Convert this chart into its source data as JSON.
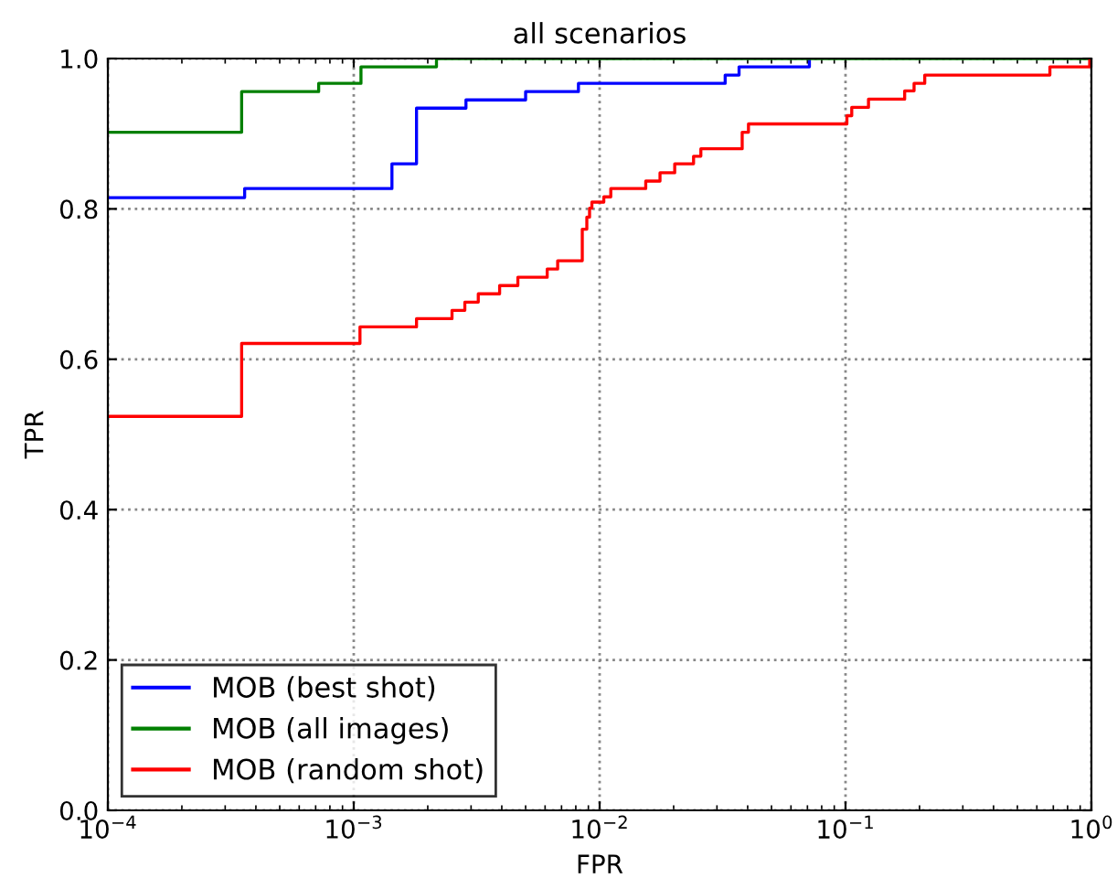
{
  "chart_data": {
    "type": "step",
    "title": "all scenarios",
    "xlabel": "FPR",
    "ylabel": "TPR",
    "log": "x",
    "grid": true,
    "legend": "bottom left",
    "line_style": "solid",
    "marker": "none",
    "xlim": [
      0.0001,
      1
    ],
    "xticks": [
      {
        "value": 0.0001,
        "label": "10$^{−4}$"
      },
      {
        "value": 0.001,
        "label": "10$^{−3}$"
      },
      {
        "value": 0.01,
        "label": "10$^{−2}$"
      },
      {
        "value": 0.1,
        "label": "10$^{−1}$"
      },
      {
        "value": 1,
        "label": "10$^{0}$"
      }
    ],
    "ylim": [
      0,
      1
    ],
    "yticks": [
      {
        "value": 0,
        "label": "0.0"
      },
      {
        "value": 0.2,
        "label": "0.2"
      },
      {
        "value": 0.4,
        "label": "0.4"
      },
      {
        "value": 0.6,
        "label": "0.6"
      },
      {
        "value": 0.8,
        "label": "0.8"
      },
      {
        "value": 1,
        "label": "1.0"
      }
    ],
    "series": [
      {
        "name": "MOB (best shot)",
        "color": "#0000ff",
        "x": [
          0.0001,
          0.00036,
          0.00143,
          0.0018,
          0.00286,
          0.005,
          0.0082,
          0.0324,
          0.0369,
          0.0713
        ],
        "values": [
          0.815,
          0.827,
          0.86,
          0.934,
          0.945,
          0.956,
          0.967,
          0.978,
          0.989,
          1.0
        ]
      },
      {
        "name": "MOB (all images)",
        "color": "#008000",
        "x": [
          0.0001,
          0.00035,
          0.00072,
          0.00107,
          0.00217,
          1
        ],
        "values": [
          0.902,
          0.956,
          0.967,
          0.989,
          1.0,
          1.0
        ]
      },
      {
        "name": "MOB (random shot)",
        "color": "#ff0000",
        "x": [
          0.0001,
          0.00035,
          0.00106,
          0.0018,
          0.00251,
          0.00283,
          0.00321,
          0.00392,
          0.00465,
          0.00612,
          0.00675,
          0.0085,
          0.00887,
          0.0091,
          0.0093,
          0.0104,
          0.0111,
          0.0154,
          0.0176,
          0.0202,
          0.0241,
          0.0258,
          0.038,
          0.0403,
          0.1013,
          0.106,
          0.124,
          0.174,
          0.19,
          0.21,
          0.678,
          0.984,
          1
        ],
        "values": [
          0.524,
          0.621,
          0.643,
          0.654,
          0.665,
          0.676,
          0.687,
          0.698,
          0.709,
          0.72,
          0.731,
          0.773,
          0.789,
          0.801,
          0.809,
          0.816,
          0.827,
          0.837,
          0.848,
          0.86,
          0.87,
          0.88,
          0.902,
          0.913,
          0.924,
          0.935,
          0.946,
          0.957,
          0.967,
          0.978,
          0.989,
          1.0,
          1.0
        ]
      }
    ]
  }
}
